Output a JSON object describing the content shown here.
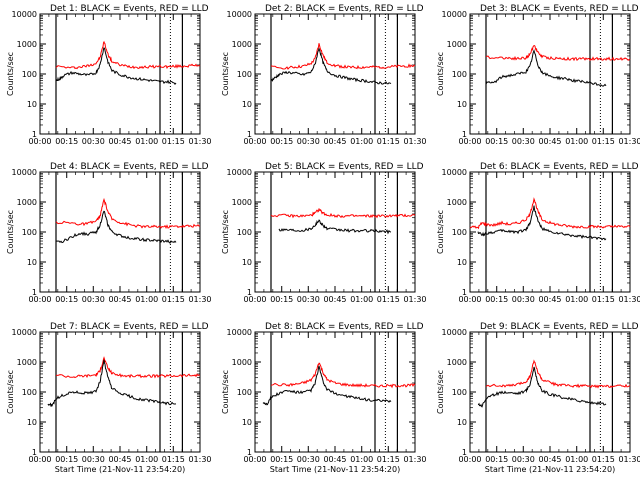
{
  "figure": {
    "background": "#ffffff",
    "axis_color": "#000000"
  },
  "chart_data": [
    {
      "type": "line",
      "title": "Det 1: BLACK = Events, RED = LLD",
      "ylabel": "Counts/sec",
      "xlabel": "",
      "yscale": "log",
      "ylim": [
        1,
        10000
      ],
      "ytick_labels": [
        "1",
        "10",
        "100",
        "1000",
        "10000"
      ],
      "xtick_labels": [
        "00:00",
        "00:15",
        "00:30",
        "00:45",
        "01:00",
        "01:15",
        "01:30"
      ],
      "vlines_solid": [
        0.2,
        1.5,
        1.78
      ],
      "vlines_dotted": [
        1.63
      ],
      "series": [
        {
          "color": "#ff0000",
          "x": [
            0.2,
            0.4,
            0.5,
            0.6,
            0.7,
            0.75,
            0.8,
            0.85,
            0.9,
            1.0,
            1.1,
            1.2,
            1.3,
            1.4,
            1.5,
            1.6,
            1.7,
            1.8,
            1.9,
            2.0
          ],
          "y": [
            180,
            160,
            170,
            190,
            230,
            350,
            1200,
            450,
            260,
            200,
            180,
            170,
            170,
            175,
            180,
            175,
            180,
            185,
            190,
            195
          ]
        },
        {
          "color": "#000000",
          "x": [
            0.2,
            0.25,
            0.3,
            0.4,
            0.5,
            0.6,
            0.7,
            0.75,
            0.8,
            0.85,
            0.9,
            1.0,
            1.1,
            1.2,
            1.3,
            1.4,
            1.5,
            1.6,
            1.7
          ],
          "y": [
            60,
            70,
            90,
            110,
            100,
            90,
            110,
            200,
            800,
            250,
            130,
            95,
            80,
            70,
            65,
            60,
            55,
            55,
            50
          ]
        }
      ]
    },
    {
      "type": "line",
      "title": "Det 2: BLACK = Events, RED = LLD",
      "ylabel": "Counts/sec",
      "xlabel": "",
      "yscale": "log",
      "ylim": [
        1,
        10000
      ],
      "ytick_labels": [
        "1",
        "10",
        "100",
        "1000",
        "10000"
      ],
      "xtick_labels": [
        "00:00",
        "00:15",
        "00:30",
        "00:45",
        "01:00",
        "01:15",
        "01:30"
      ],
      "vlines_solid": [
        0.2,
        1.5,
        1.78
      ],
      "vlines_dotted": [
        1.63
      ],
      "series": [
        {
          "color": "#ff0000",
          "x": [
            0.2,
            0.4,
            0.5,
            0.6,
            0.7,
            0.75,
            0.8,
            0.85,
            0.9,
            1.0,
            1.1,
            1.2,
            1.3,
            1.4,
            1.5,
            1.6,
            1.7,
            1.8,
            1.9,
            2.0
          ],
          "y": [
            170,
            160,
            170,
            180,
            220,
            320,
            1000,
            420,
            240,
            190,
            175,
            165,
            165,
            170,
            170,
            170,
            175,
            180,
            185,
            190
          ]
        },
        {
          "color": "#000000",
          "x": [
            0.2,
            0.25,
            0.3,
            0.4,
            0.5,
            0.6,
            0.7,
            0.75,
            0.8,
            0.85,
            0.9,
            1.0,
            1.1,
            1.2,
            1.3,
            1.4,
            1.5,
            1.6,
            1.7
          ],
          "y": [
            60,
            75,
            95,
            115,
            105,
            95,
            115,
            210,
            750,
            240,
            125,
            90,
            78,
            68,
            62,
            58,
            52,
            50,
            48
          ]
        }
      ]
    },
    {
      "type": "line",
      "title": "Det 3: BLACK = Events, RED = LLD",
      "ylabel": "Counts/sec",
      "xlabel": "",
      "yscale": "log",
      "ylim": [
        1,
        10000
      ],
      "ytick_labels": [
        "1",
        "10",
        "100",
        "1000",
        "10000"
      ],
      "xtick_labels": [
        "00:00",
        "00:15",
        "00:30",
        "00:45",
        "01:00",
        "01:15",
        "01:30"
      ],
      "vlines_solid": [
        0.2,
        1.5,
        1.78
      ],
      "vlines_dotted": [
        1.63
      ],
      "series": [
        {
          "color": "#ff0000",
          "x": [
            0.2,
            0.4,
            0.5,
            0.6,
            0.7,
            0.75,
            0.8,
            0.85,
            0.9,
            1.0,
            1.1,
            1.2,
            1.3,
            1.4,
            1.5,
            1.6,
            1.7,
            1.8,
            1.9,
            2.0
          ],
          "y": [
            360,
            350,
            340,
            330,
            340,
            450,
            950,
            520,
            380,
            340,
            330,
            320,
            320,
            320,
            320,
            320,
            320,
            320,
            320,
            320
          ]
        },
        {
          "color": "#000000",
          "x": [
            0.2,
            0.3,
            0.4,
            0.5,
            0.6,
            0.7,
            0.75,
            0.8,
            0.85,
            0.9,
            1.0,
            1.1,
            1.2,
            1.3,
            1.4,
            1.5,
            1.6,
            1.7
          ],
          "y": [
            50,
            52,
            80,
            90,
            100,
            120,
            180,
            600,
            200,
            110,
            85,
            75,
            70,
            60,
            55,
            50,
            45,
            40
          ]
        }
      ]
    },
    {
      "type": "line",
      "title": "Det 4: BLACK = Events, RED = LLD",
      "ylabel": "Counts/sec",
      "xlabel": "",
      "yscale": "log",
      "ylim": [
        1,
        10000
      ],
      "ytick_labels": [
        "1",
        "10",
        "100",
        "1000",
        "10000"
      ],
      "xtick_labels": [
        "00:00",
        "00:15",
        "00:30",
        "00:45",
        "01:00",
        "01:15",
        "01:30"
      ],
      "vlines_solid": [
        0.2,
        1.5,
        1.78
      ],
      "vlines_dotted": [
        1.63
      ],
      "series": [
        {
          "color": "#ff0000",
          "x": [
            0.2,
            0.4,
            0.5,
            0.6,
            0.7,
            0.75,
            0.8,
            0.85,
            0.9,
            1.0,
            1.1,
            1.2,
            1.3,
            1.4,
            1.5,
            1.6,
            1.7,
            1.8,
            1.9,
            2.0
          ],
          "y": [
            210,
            200,
            180,
            190,
            230,
            330,
            1200,
            470,
            270,
            210,
            180,
            160,
            150,
            150,
            150,
            150,
            155,
            155,
            160,
            160
          ]
        },
        {
          "color": "#000000",
          "x": [
            0.2,
            0.3,
            0.4,
            0.5,
            0.6,
            0.7,
            0.75,
            0.8,
            0.85,
            0.9,
            1.0,
            1.1,
            1.2,
            1.3,
            1.4,
            1.5,
            1.6,
            1.7
          ],
          "y": [
            45,
            50,
            70,
            90,
            85,
            100,
            170,
            500,
            170,
            100,
            75,
            65,
            60,
            55,
            52,
            50,
            48,
            45
          ]
        }
      ]
    },
    {
      "type": "line",
      "title": "Det 5: BLACK = Events, RED = LLD",
      "ylabel": "Counts/sec",
      "xlabel": "",
      "yscale": "log",
      "ylim": [
        1,
        10000
      ],
      "ytick_labels": [
        "1",
        "10",
        "100",
        "1000",
        "10000"
      ],
      "xtick_labels": [
        "00:00",
        "00:15",
        "00:30",
        "00:45",
        "01:00",
        "01:15",
        "01:30"
      ],
      "vlines_solid": [
        0.2,
        1.5,
        1.78
      ],
      "vlines_dotted": [
        1.63
      ],
      "series": [
        {
          "color": "#ff0000",
          "x": [
            0.2,
            0.4,
            0.5,
            0.6,
            0.7,
            0.75,
            0.8,
            0.85,
            0.9,
            1.0,
            1.1,
            1.2,
            1.3,
            1.4,
            1.5,
            1.6,
            1.7,
            1.8,
            1.9,
            2.0
          ],
          "y": [
            360,
            350,
            340,
            340,
            360,
            420,
            560,
            430,
            370,
            350,
            340,
            340,
            340,
            340,
            340,
            340,
            345,
            350,
            355,
            360
          ]
        },
        {
          "color": "#000000",
          "x": [
            0.3,
            0.4,
            0.5,
            0.6,
            0.7,
            0.75,
            0.8,
            0.85,
            0.9,
            1.0,
            1.1,
            1.2,
            1.3,
            1.4,
            1.5,
            1.6,
            1.7
          ],
          "y": [
            120,
            120,
            115,
            115,
            130,
            170,
            240,
            170,
            130,
            120,
            115,
            110,
            110,
            110,
            108,
            105,
            100
          ]
        }
      ]
    },
    {
      "type": "line",
      "title": "Det 6: BLACK = Events, RED = LLD",
      "ylabel": "Counts/sec",
      "xlabel": "",
      "yscale": "log",
      "ylim": [
        1,
        10000
      ],
      "ytick_labels": [
        "1",
        "10",
        "100",
        "1000",
        "10000"
      ],
      "xtick_labels": [
        "00:00",
        "00:15",
        "00:30",
        "00:45",
        "01:00",
        "01:15",
        "01:30"
      ],
      "vlines_solid": [
        0.2,
        1.5,
        1.78
      ],
      "vlines_dotted": [
        1.63
      ],
      "series": [
        {
          "color": "#ff0000",
          "x": [
            0.0,
            0.1,
            0.15,
            0.2,
            0.3,
            0.4,
            0.5,
            0.6,
            0.7,
            0.75,
            0.8,
            0.85,
            0.9,
            1.0,
            1.1,
            1.2,
            1.3,
            1.4,
            1.5,
            1.6,
            1.7,
            1.8,
            1.9,
            2.0
          ],
          "y": [
            150,
            140,
            200,
            180,
            170,
            200,
            180,
            200,
            260,
            380,
            1300,
            480,
            260,
            200,
            175,
            160,
            150,
            150,
            150,
            150,
            150,
            150,
            150,
            150
          ]
        },
        {
          "color": "#000000",
          "x": [
            0.1,
            0.15,
            0.2,
            0.3,
            0.4,
            0.5,
            0.6,
            0.7,
            0.75,
            0.8,
            0.85,
            0.9,
            1.0,
            1.1,
            1.2,
            1.3,
            1.4,
            1.5,
            1.6,
            1.7
          ],
          "y": [
            100,
            80,
            90,
            100,
            110,
            105,
            100,
            120,
            200,
            700,
            230,
            130,
            100,
            90,
            80,
            75,
            70,
            65,
            62,
            60
          ]
        }
      ]
    },
    {
      "type": "line",
      "title": "Det 7: BLACK = Events, RED = LLD",
      "xlabel": "Start Time (21-Nov-11 23:54:20)",
      "ylabel": "Counts/sec",
      "yscale": "log",
      "ylim": [
        1,
        10000
      ],
      "ytick_labels": [
        "1",
        "10",
        "100",
        "1000",
        "10000"
      ],
      "xtick_labels": [
        "00:00",
        "00:15",
        "00:30",
        "00:45",
        "01:00",
        "01:15",
        "01:30"
      ],
      "vlines_solid": [
        0.2,
        1.5,
        1.78
      ],
      "vlines_dotted": [
        1.63
      ],
      "series": [
        {
          "color": "#ff0000",
          "x": [
            0.2,
            0.4,
            0.5,
            0.6,
            0.7,
            0.75,
            0.8,
            0.85,
            0.9,
            1.0,
            1.1,
            1.2,
            1.3,
            1.4,
            1.5,
            1.6,
            1.7,
            1.8,
            1.9,
            2.0
          ],
          "y": [
            380,
            320,
            340,
            350,
            380,
            500,
            1350,
            620,
            420,
            360,
            340,
            340,
            340,
            340,
            340,
            345,
            350,
            355,
            360,
            365
          ]
        },
        {
          "color": "#000000",
          "x": [
            0.1,
            0.15,
            0.2,
            0.3,
            0.4,
            0.5,
            0.6,
            0.7,
            0.75,
            0.8,
            0.85,
            0.9,
            1.0,
            1.1,
            1.2,
            1.3,
            1.4,
            1.5,
            1.6,
            1.7
          ],
          "y": [
            40,
            35,
            60,
            80,
            100,
            95,
            90,
            110,
            220,
            1100,
            300,
            130,
            90,
            75,
            60,
            55,
            50,
            45,
            42,
            40
          ]
        }
      ]
    },
    {
      "type": "line",
      "title": "Det 8: BLACK = Events, RED = LLD",
      "xlabel": "Start Time (21-Nov-11 23:54:20)",
      "ylabel": "Counts/sec",
      "yscale": "log",
      "ylim": [
        1,
        10000
      ],
      "ytick_labels": [
        "1",
        "10",
        "100",
        "1000",
        "10000"
      ],
      "xtick_labels": [
        "00:00",
        "00:15",
        "00:30",
        "00:45",
        "01:00",
        "01:15",
        "01:30"
      ],
      "vlines_solid": [
        0.2,
        1.5,
        1.78
      ],
      "vlines_dotted": [
        1.63
      ],
      "series": [
        {
          "color": "#ff0000",
          "x": [
            0.2,
            0.4,
            0.5,
            0.6,
            0.7,
            0.75,
            0.8,
            0.85,
            0.9,
            1.0,
            1.1,
            1.2,
            1.3,
            1.4,
            1.5,
            1.6,
            1.7,
            1.8,
            1.9,
            2.0
          ],
          "y": [
            180,
            170,
            180,
            200,
            250,
            380,
            1000,
            450,
            260,
            200,
            180,
            170,
            165,
            165,
            160,
            160,
            160,
            165,
            165,
            170
          ]
        },
        {
          "color": "#000000",
          "x": [
            0.1,
            0.15,
            0.2,
            0.3,
            0.4,
            0.5,
            0.6,
            0.7,
            0.75,
            0.8,
            0.85,
            0.9,
            1.0,
            1.1,
            1.2,
            1.3,
            1.4,
            1.5,
            1.6,
            1.7
          ],
          "y": [
            45,
            40,
            65,
            90,
            110,
            100,
            95,
            115,
            190,
            700,
            220,
            120,
            90,
            78,
            68,
            60,
            55,
            52,
            50,
            48
          ]
        }
      ]
    },
    {
      "type": "line",
      "title": "Det 9: BLACK = Events, RED = LLD",
      "xlabel": "Start Time (21-Nov-11 23:54:20)",
      "ylabel": "Counts/sec",
      "yscale": "log",
      "ylim": [
        1,
        10000
      ],
      "ytick_labels": [
        "1",
        "10",
        "100",
        "1000",
        "10000"
      ],
      "xtick_labels": [
        "00:00",
        "00:15",
        "00:30",
        "00:45",
        "01:00",
        "01:15",
        "01:30"
      ],
      "vlines_solid": [
        0.2,
        1.5,
        1.78
      ],
      "vlines_dotted": [
        1.63
      ],
      "series": [
        {
          "color": "#ff0000",
          "x": [
            0.2,
            0.4,
            0.5,
            0.6,
            0.7,
            0.75,
            0.8,
            0.85,
            0.9,
            1.0,
            1.1,
            1.2,
            1.3,
            1.4,
            1.5,
            1.6,
            1.7,
            1.8,
            1.9,
            2.0
          ],
          "y": [
            170,
            160,
            160,
            180,
            220,
            330,
            1100,
            450,
            260,
            200,
            175,
            165,
            160,
            160,
            155,
            155,
            155,
            160,
            160,
            165
          ]
        },
        {
          "color": "#000000",
          "x": [
            0.1,
            0.15,
            0.2,
            0.3,
            0.4,
            0.5,
            0.6,
            0.7,
            0.75,
            0.8,
            0.85,
            0.9,
            1.0,
            1.1,
            1.2,
            1.3,
            1.4,
            1.5,
            1.6,
            1.7
          ],
          "y": [
            40,
            35,
            60,
            80,
            100,
            95,
            90,
            110,
            180,
            650,
            200,
            110,
            82,
            72,
            62,
            55,
            50,
            45,
            42,
            40
          ]
        }
      ]
    }
  ]
}
